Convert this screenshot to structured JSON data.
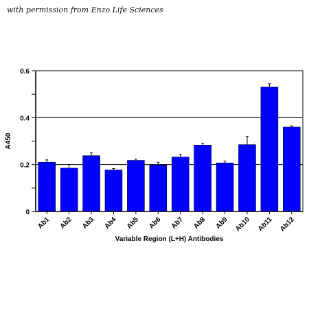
{
  "caption": "with permission from Enzo Life Sciences",
  "chart_data": {
    "type": "bar",
    "title": "",
    "xlabel": "Variable Region (L+H) Antibodies",
    "ylabel": "A450",
    "ylim": [
      0,
      0.6
    ],
    "yticks_labeled": [
      "0",
      "0.2",
      "0.4",
      "0.6"
    ],
    "ytick_values_labeled": [
      0,
      0.2,
      0.4,
      0.6
    ],
    "ytick_values_minor": [
      0.1,
      0.3,
      0.5
    ],
    "grid_values": [
      0.2,
      0.4
    ],
    "categories": [
      "Ab1",
      "Ab2",
      "Ab3",
      "Ab4",
      "Ab5",
      "Ab6",
      "Ab7",
      "Ab8",
      "Ab9",
      "Ab10",
      "Ab11",
      "Ab12"
    ],
    "values": [
      0.21,
      0.185,
      0.238,
      0.177,
      0.218,
      0.198,
      0.232,
      0.283,
      0.207,
      0.285,
      0.53,
      0.36
    ],
    "errors": [
      0.01,
      0.015,
      0.012,
      0.006,
      0.005,
      0.012,
      0.012,
      0.008,
      0.008,
      0.035,
      0.015,
      0.005
    ],
    "bar_color": "#0000ff",
    "grid": true,
    "legend": "none"
  }
}
